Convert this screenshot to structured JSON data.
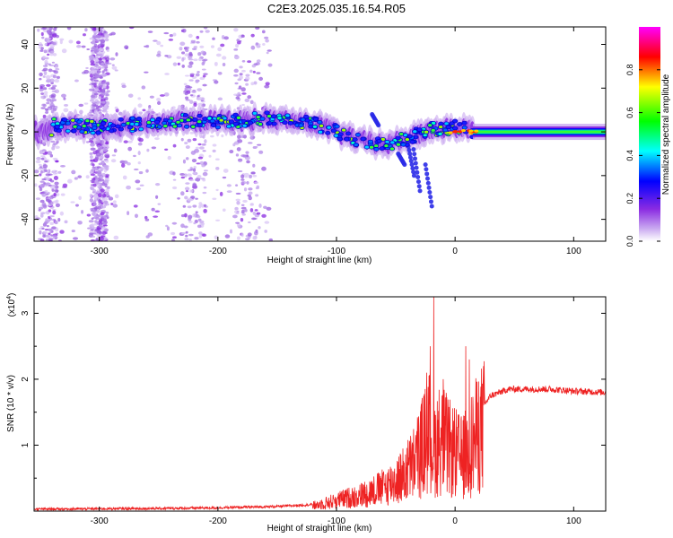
{
  "figure_title": "C2E3.2025.035.16.54.R05",
  "chart_data": [
    {
      "type": "heatmap",
      "title": "C2E3.2025.035.16.54.R05",
      "xlabel": "Height of straight line (km)",
      "ylabel": "Frequency (Hz)",
      "xlim": [
        -355,
        127
      ],
      "ylim": [
        -50,
        48
      ],
      "xticks": [
        -300,
        -200,
        -100,
        0,
        100
      ],
      "yticks": [
        -40,
        -20,
        0,
        20,
        40
      ],
      "grid": false,
      "colorbar": {
        "label": "Normalized spectral amplitude",
        "range": [
          0,
          1
        ],
        "ticks": [
          "0.0",
          "0.2",
          "0.4",
          "0.6",
          "0.8"
        ],
        "colormap": [
          "#ffffff",
          "#8a2be2",
          "#0000ff",
          "#00ffff",
          "#00ff00",
          "#ffff00",
          "#ff0000",
          "#ff00ff"
        ]
      },
      "band_center_track": [
        {
          "x": -340,
          "y": 3
        },
        {
          "x": -300,
          "y": 2
        },
        {
          "x": -260,
          "y": 4
        },
        {
          "x": -220,
          "y": 5
        },
        {
          "x": -180,
          "y": 5
        },
        {
          "x": -160,
          "y": 6
        },
        {
          "x": -140,
          "y": 5
        },
        {
          "x": -120,
          "y": 4
        },
        {
          "x": -100,
          "y": 0
        },
        {
          "x": -80,
          "y": -4
        },
        {
          "x": -60,
          "y": -6
        },
        {
          "x": -40,
          "y": -3
        },
        {
          "x": -20,
          "y": 1
        },
        {
          "x": 0,
          "y": 2
        },
        {
          "x": 20,
          "y": 0
        },
        {
          "x": 60,
          "y": 0
        },
        {
          "x": 127,
          "y": 0
        }
      ]
    },
    {
      "type": "line",
      "xlabel": "Height of straight line (km)",
      "ylabel": "SNR (10 * v/v)",
      "y_multiplier": "(x10",
      "y_multiplier_exp": "4",
      "xlim": [
        -355,
        127
      ],
      "ylim": [
        0,
        3.25
      ],
      "xticks": [
        -300,
        -200,
        -100,
        0,
        100
      ],
      "yticks": [
        1,
        2,
        3
      ],
      "grid": false,
      "series_color": "#ee2222",
      "envelope": [
        {
          "x": -355,
          "y": 0.03
        },
        {
          "x": -250,
          "y": 0.04
        },
        {
          "x": -200,
          "y": 0.05
        },
        {
          "x": -150,
          "y": 0.07
        },
        {
          "x": -120,
          "y": 0.1
        },
        {
          "x": -100,
          "y": 0.2
        },
        {
          "x": -80,
          "y": 0.3
        },
        {
          "x": -60,
          "y": 0.45
        },
        {
          "x": -45,
          "y": 0.65
        },
        {
          "x": -35,
          "y": 0.9
        },
        {
          "x": -28,
          "y": 1.2
        },
        {
          "x": -22,
          "y": 1.5
        },
        {
          "x": -18,
          "y": 1.2
        },
        {
          "x": -12,
          "y": 1.4
        },
        {
          "x": -6,
          "y": 1.2
        },
        {
          "x": 0,
          "y": 1.1
        },
        {
          "x": 5,
          "y": 1.0
        },
        {
          "x": 10,
          "y": 1.1
        },
        {
          "x": 20,
          "y": 1.5
        },
        {
          "x": 30,
          "y": 1.75
        },
        {
          "x": 45,
          "y": 1.85
        },
        {
          "x": 80,
          "y": 1.85
        },
        {
          "x": 100,
          "y": 1.82
        },
        {
          "x": 127,
          "y": 1.8
        }
      ],
      "spikes": [
        {
          "x": -18,
          "y": 3.25
        },
        {
          "x": -21,
          "y": 2.5
        },
        {
          "x": -24,
          "y": 2.1
        },
        {
          "x": 9,
          "y": 2.5
        },
        {
          "x": 12,
          "y": 2.3
        },
        {
          "x": -10,
          "y": 2.0
        }
      ]
    }
  ]
}
